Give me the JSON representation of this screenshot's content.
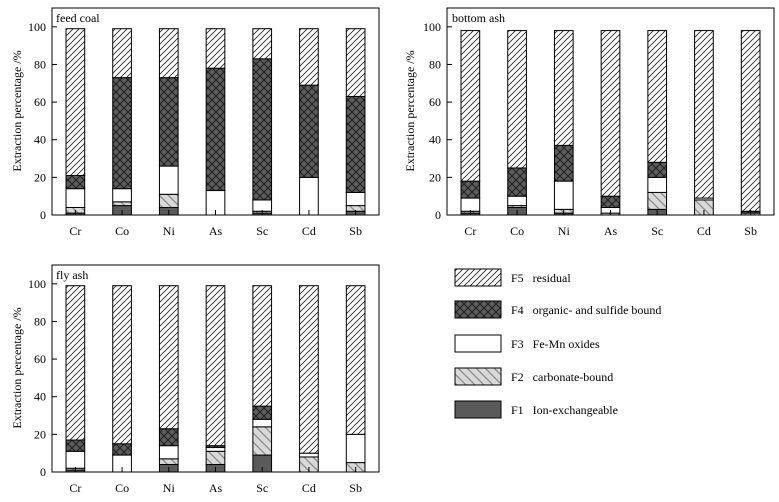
{
  "chart_data": [
    {
      "type": "bar",
      "stacked": true,
      "panel_label": "feed coal",
      "ylabel": "Extraction percentage /%",
      "ylim": [
        0,
        110
      ],
      "yticks": [
        "0",
        "20",
        "40",
        "60",
        "80",
        "100"
      ],
      "categories": [
        "Cr",
        "Co",
        "Ni",
        "As",
        "Sc",
        "Cd",
        "Sb"
      ],
      "series": [
        {
          "key": "F1",
          "values": [
            1,
            5,
            4,
            0,
            1,
            0,
            2
          ]
        },
        {
          "key": "F2",
          "values": [
            3,
            2,
            7,
            0,
            1,
            0,
            3
          ]
        },
        {
          "key": "F3",
          "values": [
            10,
            7,
            15,
            13,
            6,
            20,
            7
          ]
        },
        {
          "key": "F4",
          "values": [
            7,
            59,
            47,
            65,
            75,
            49,
            51
          ]
        },
        {
          "key": "F5",
          "values": [
            78,
            26,
            26,
            21,
            16,
            30,
            36
          ]
        }
      ]
    },
    {
      "type": "bar",
      "stacked": true,
      "panel_label": "bottom ash",
      "ylabel": "Extraction percentage /%",
      "ylim": [
        0,
        110
      ],
      "yticks": [
        "0",
        "20",
        "40",
        "60",
        "80",
        "100"
      ],
      "categories": [
        "Cr",
        "Co",
        "Ni",
        "As",
        "Sc",
        "Cd",
        "Sb"
      ],
      "series": [
        {
          "key": "F1",
          "values": [
            1,
            4,
            1,
            0,
            3,
            0,
            0
          ]
        },
        {
          "key": "F2",
          "values": [
            1,
            1,
            2,
            1,
            9,
            8,
            1
          ]
        },
        {
          "key": "F3",
          "values": [
            7,
            5,
            15,
            3,
            8,
            1,
            0
          ]
        },
        {
          "key": "F4",
          "values": [
            9,
            15,
            19,
            6,
            8,
            0,
            1
          ]
        },
        {
          "key": "F5",
          "values": [
            80,
            73,
            61,
            88,
            70,
            89,
            96
          ]
        }
      ]
    },
    {
      "type": "bar",
      "stacked": true,
      "panel_label": "fly ash",
      "ylabel": "Extraction percentage /%",
      "ylim": [
        0,
        110
      ],
      "yticks": [
        "0",
        "20",
        "40",
        "60",
        "80",
        "100"
      ],
      "categories": [
        "Cr",
        "Co",
        "Ni",
        "As",
        "Sc",
        "Cd",
        "Sb"
      ],
      "series": [
        {
          "key": "F1",
          "values": [
            1,
            0,
            4,
            4,
            9,
            0,
            0
          ]
        },
        {
          "key": "F2",
          "values": [
            1,
            0,
            3,
            7,
            15,
            8,
            5
          ]
        },
        {
          "key": "F3",
          "values": [
            9,
            9,
            7,
            2,
            4,
            2,
            15
          ]
        },
        {
          "key": "F4",
          "values": [
            6,
            6,
            9,
            1,
            7,
            0,
            0
          ]
        },
        {
          "key": "F5",
          "values": [
            82,
            84,
            76,
            85,
            64,
            89,
            79
          ]
        }
      ]
    }
  ],
  "legend": {
    "placement": "bottom-right",
    "items": [
      {
        "key": "F5",
        "label": "F5   residual",
        "pattern": "diagonal-hatch",
        "color": "#ffffff"
      },
      {
        "key": "F4",
        "label": "F4   organic- and sulfide bound",
        "pattern": "crosshatch",
        "color": "#5c5c5c"
      },
      {
        "key": "F3",
        "label": "F3   Fe-Mn oxides",
        "pattern": "solid",
        "color": "#ffffff"
      },
      {
        "key": "F2",
        "label": "F2   carbonate-bound",
        "pattern": "wide-diagonal-hatch",
        "color": "#d9d9d9"
      },
      {
        "key": "F1",
        "label": "F1   Ion-exchangeable",
        "pattern": "solid",
        "color": "#5a5a5a"
      }
    ]
  }
}
